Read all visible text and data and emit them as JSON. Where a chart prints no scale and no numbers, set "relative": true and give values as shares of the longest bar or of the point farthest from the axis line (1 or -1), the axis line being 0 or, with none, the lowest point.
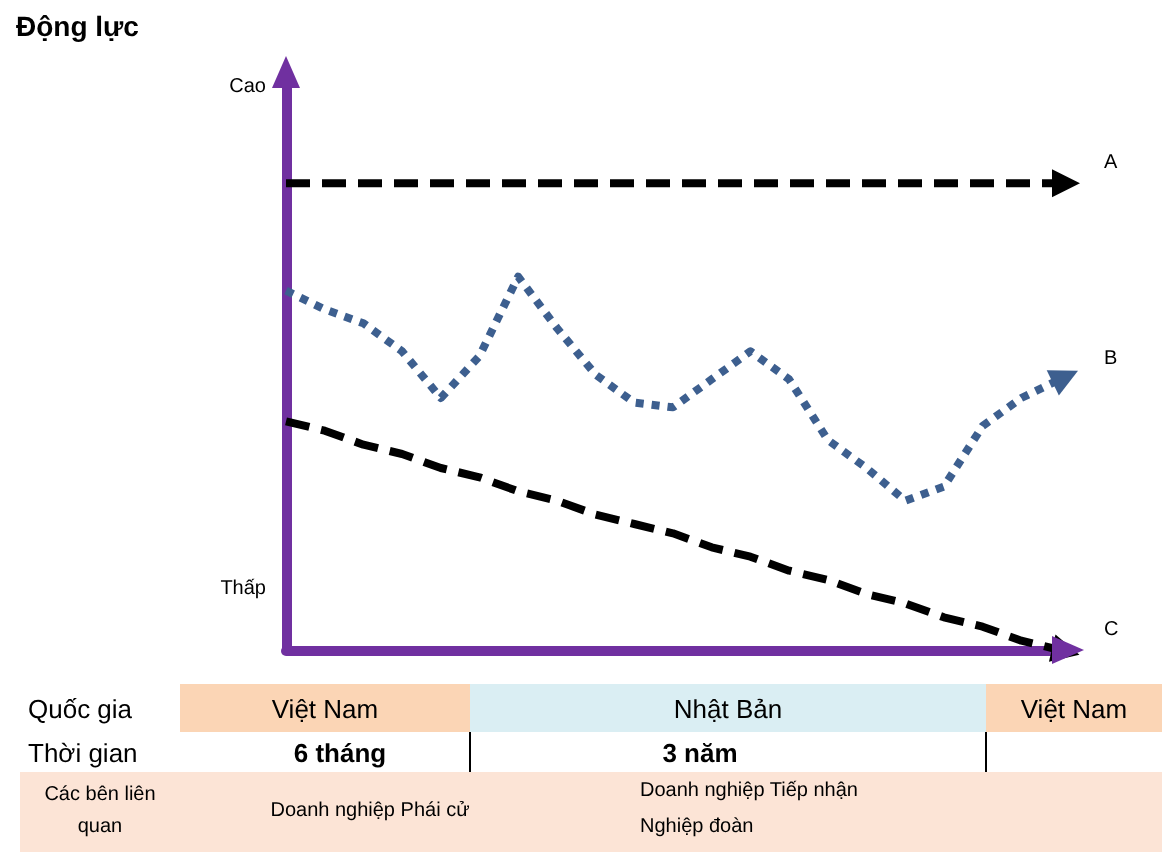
{
  "chart_data": {
    "type": "line",
    "relative": true,
    "title": "Động lực",
    "categories": [
      null,
      null,
      null,
      null,
      null,
      null,
      null,
      null,
      null,
      null,
      null,
      null,
      null,
      null,
      null,
      null,
      null,
      null,
      null,
      null,
      null
    ],
    "series": [
      {
        "name": "A",
        "color": "#000000",
        "line_style": "dashed",
        "values": [
          1,
          1,
          1,
          1,
          1,
          1,
          1,
          1,
          1,
          1,
          1,
          1,
          1,
          1,
          1,
          1,
          1,
          1,
          1,
          1,
          1
        ]
      },
      {
        "name": "B",
        "color": "#3d5f8f",
        "line_style": "dotted",
        "values": [
          0.77,
          0.73,
          0.7,
          0.64,
          0.54,
          0.63,
          0.8,
          0.69,
          0.59,
          0.53,
          0.52,
          0.58,
          0.64,
          0.58,
          0.45,
          0.39,
          0.32,
          0.35,
          0.48,
          0.54,
          0.58
        ]
      },
      {
        "name": "C",
        "color": "#000000",
        "line_style": "dashed",
        "values": [
          0.49,
          0.47,
          0.44,
          0.42,
          0.39,
          0.37,
          0.34,
          0.32,
          0.29,
          0.27,
          0.25,
          0.22,
          0.2,
          0.17,
          0.15,
          0.12,
          0.1,
          0.07,
          0.05,
          0.02,
          0
        ]
      }
    ],
    "marker": "none",
    "grid": false,
    "annotations": [
      "Cao",
      "Thấp",
      "Quốc gia",
      "Việt Nam",
      "Nhật Bản",
      "Việt Nam",
      "Thời gian",
      "6 tháng",
      "3 năm",
      "Các bên liên quan",
      "Doanh nghiệp Phái cử",
      "Doanh nghiệp Tiếp nhận",
      "Nghiệp đoàn"
    ]
  }
}
